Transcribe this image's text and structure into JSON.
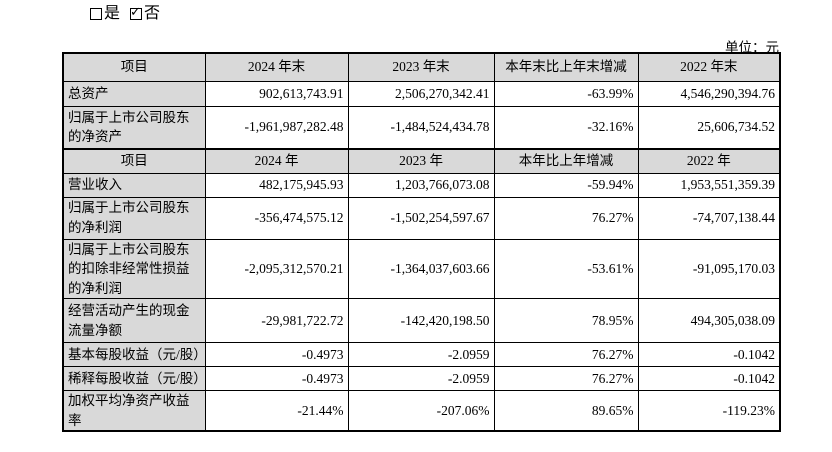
{
  "page": {
    "unit_label": "单位：元"
  },
  "checkboxes": {
    "yes_label": "是",
    "no_label": "否",
    "yes_checked": false,
    "no_checked": true
  },
  "colors": {
    "header_bg": "#d9d9d9",
    "border": "#000000",
    "page_bg": "#ffffff"
  },
  "balance_table": {
    "headers": [
      "项目",
      "2024 年末",
      "2023 年末",
      "本年末比上年末增减",
      "2022 年末"
    ],
    "rows": [
      {
        "label": "总资产",
        "values": [
          "902,613,743.91",
          "2,506,270,342.41",
          "-63.99%",
          "4,546,290,394.76"
        ]
      },
      {
        "label": "归属于上市公司股东的净资产",
        "values": [
          "-1,961,987,282.48",
          "-1,484,524,434.78",
          "-32.16%",
          "25,606,734.52"
        ]
      }
    ]
  },
  "income_table": {
    "headers": [
      "项目",
      "2024 年",
      "2023 年",
      "本年比上年增减",
      "2022 年"
    ],
    "rows": [
      {
        "label": "营业收入",
        "values": [
          "482,175,945.93",
          "1,203,766,073.08",
          "-59.94%",
          "1,953,551,359.39"
        ]
      },
      {
        "label": "归属于上市公司股东的净利润",
        "values": [
          "-356,474,575.12",
          "-1,502,254,597.67",
          "76.27%",
          "-74,707,138.44"
        ]
      },
      {
        "label": "归属于上市公司股东的扣除非经常性损益的净利润",
        "values": [
          "-2,095,312,570.21",
          "-1,364,037,603.66",
          "-53.61%",
          "-91,095,170.03"
        ]
      },
      {
        "label": "经营活动产生的现金流量净额",
        "values": [
          "-29,981,722.72",
          "-142,420,198.50",
          "78.95%",
          "494,305,038.09"
        ]
      },
      {
        "label": "基本每股收益（元/股）",
        "values": [
          "-0.4973",
          "-2.0959",
          "76.27%",
          "-0.1042"
        ]
      },
      {
        "label": "稀释每股收益（元/股）",
        "values": [
          "-0.4973",
          "-2.0959",
          "76.27%",
          "-0.1042"
        ]
      },
      {
        "label": "加权平均净资产收益率",
        "values": [
          "-21.44%",
          "-207.06%",
          "89.65%",
          "-119.23%"
        ]
      }
    ]
  }
}
